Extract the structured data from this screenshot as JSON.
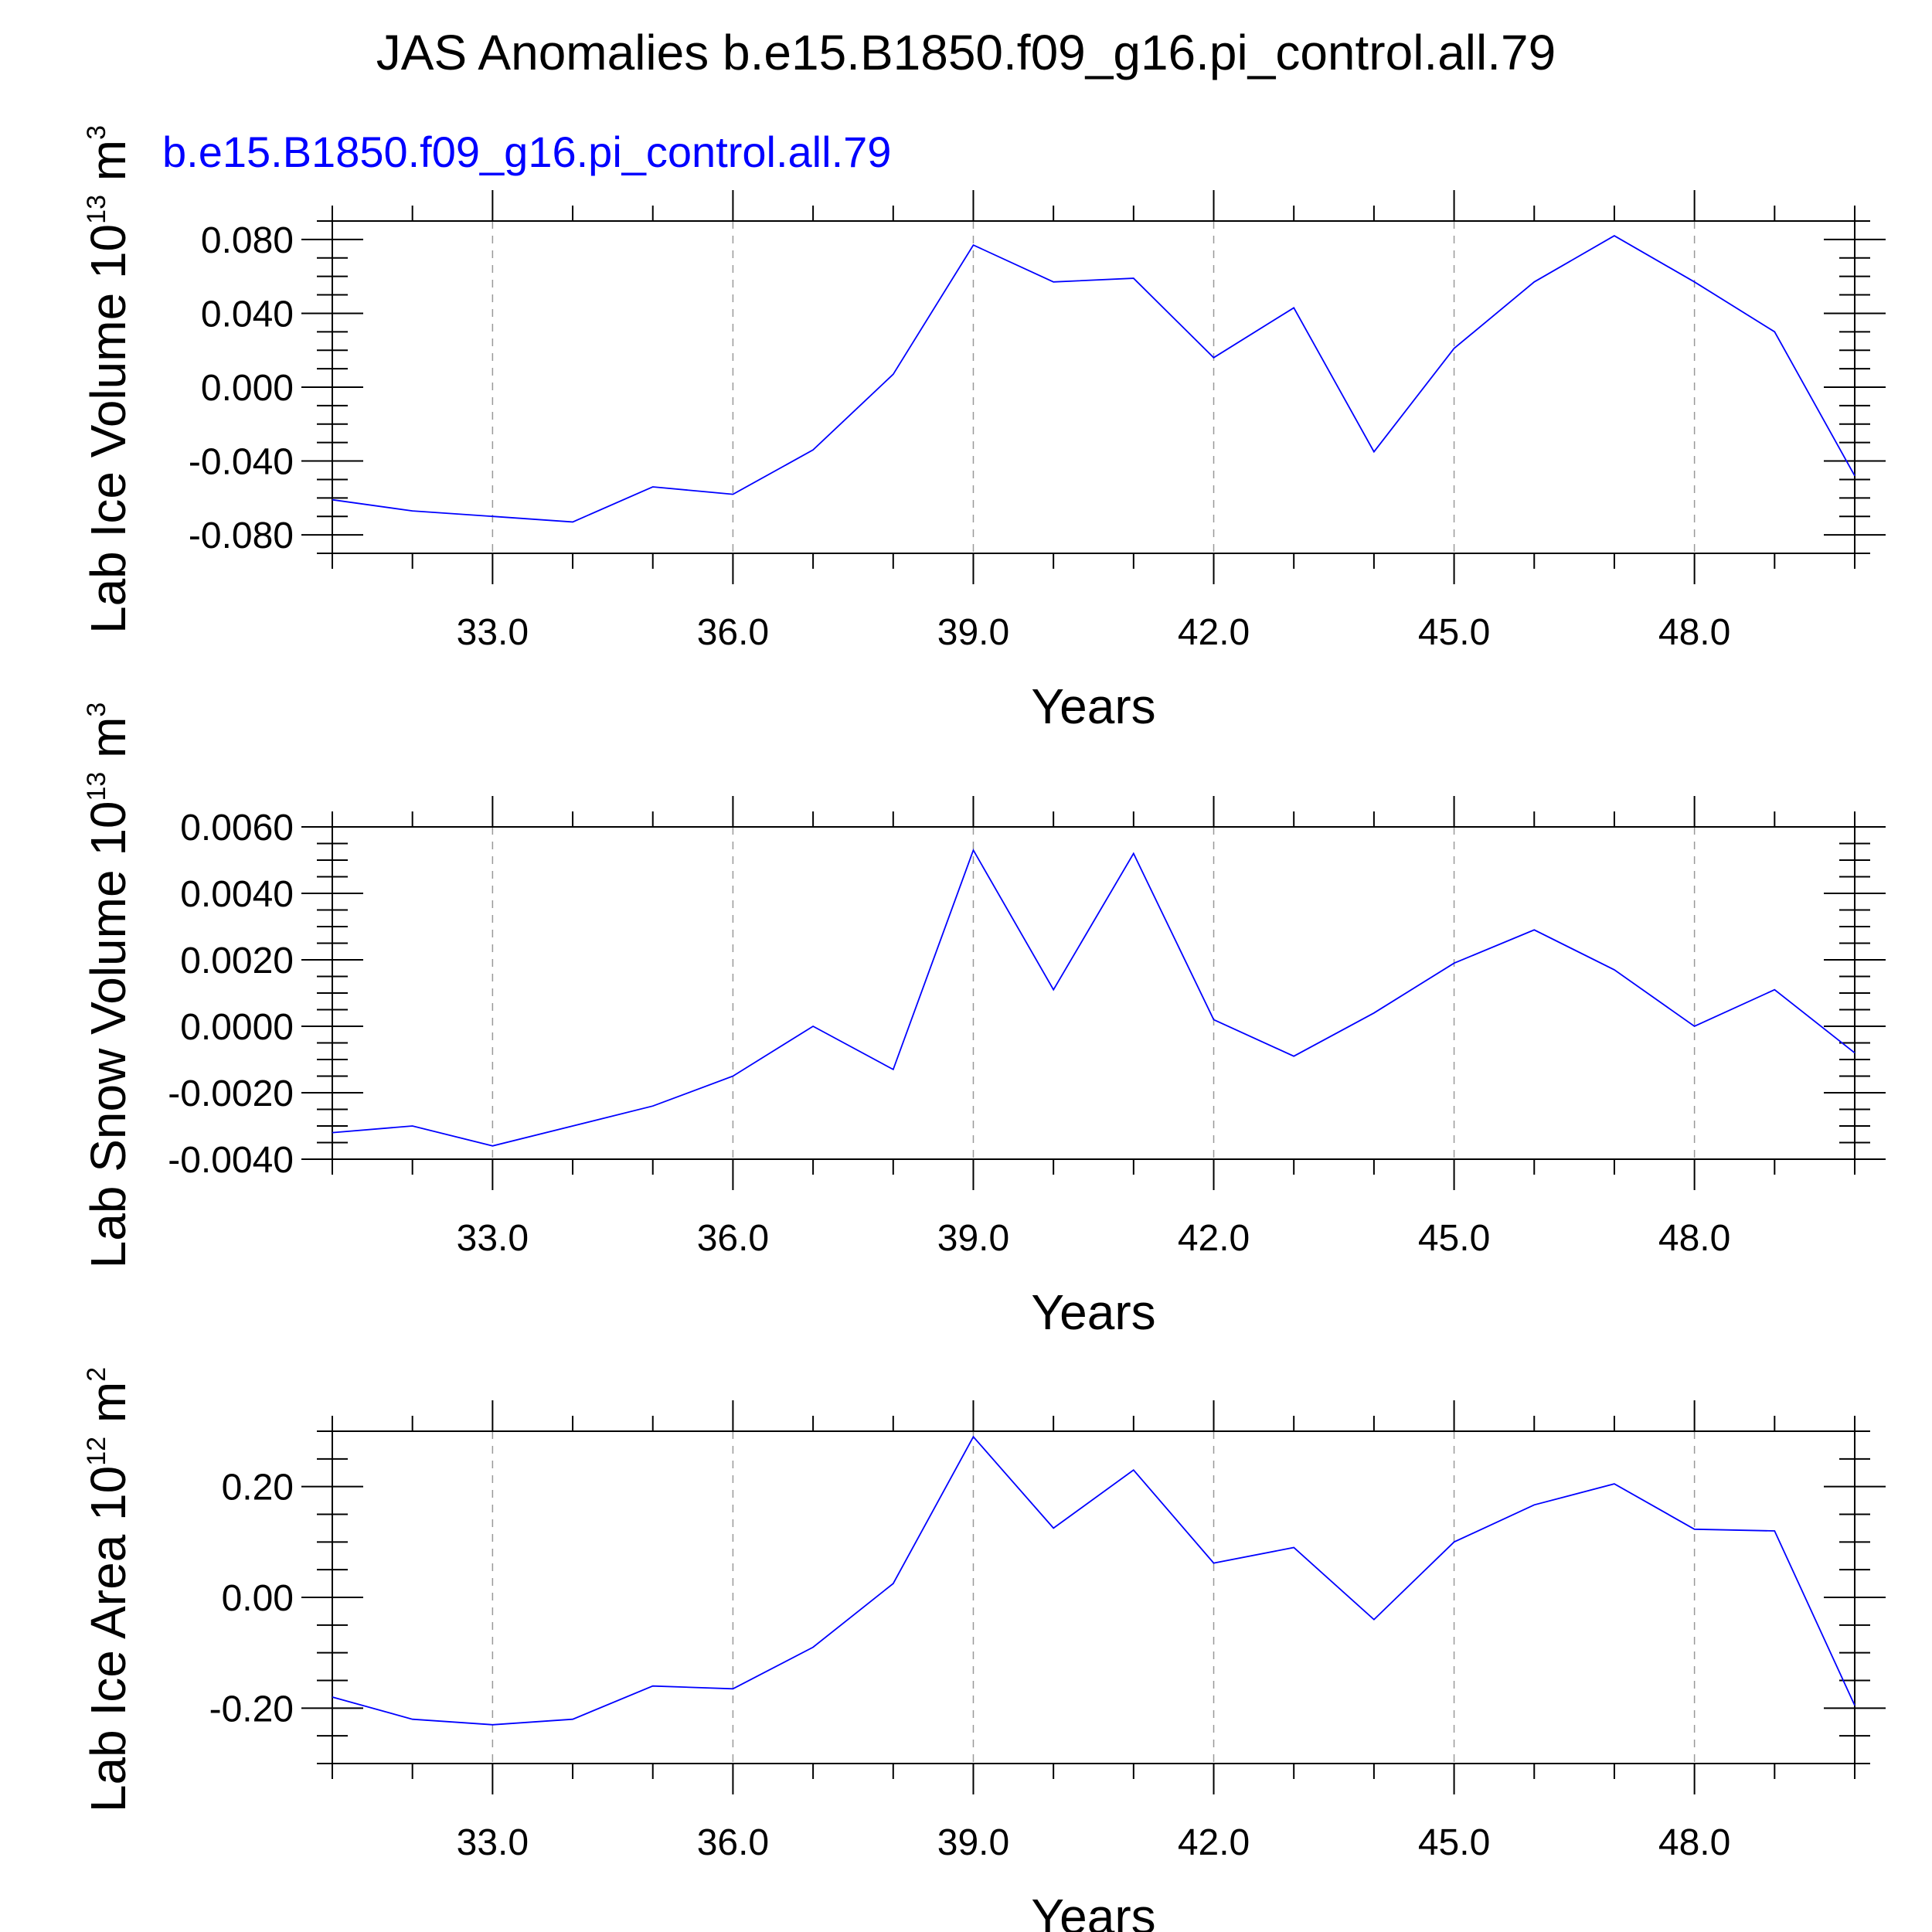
{
  "title": "JAS Anomalies b.e15.B1850.f09_g16.pi_control.all.79",
  "colors": {
    "series": "#0000ff",
    "axes": "#000000",
    "grid": "#999999",
    "background": "#ffffff"
  },
  "chart_data": [
    {
      "type": "line",
      "subtitle": "b.e15.B1850.f09_g16.pi_control.all.79",
      "ylabel": {
        "text": "Lab Ice Volume 10",
        "exponent": "13",
        "unit": "m",
        "unit_exponent": "3"
      },
      "xlabel": "Years",
      "xlim": [
        31,
        50
      ],
      "ylim": [
        -0.09,
        0.09
      ],
      "xticks": [
        33,
        36,
        39,
        42,
        45,
        48
      ],
      "xtick_labels": [
        "33.0",
        "36.0",
        "39.0",
        "42.0",
        "45.0",
        "48.0"
      ],
      "yticks": [
        -0.08,
        -0.04,
        0.0,
        0.04,
        0.08
      ],
      "ytick_labels": [
        "-0.080",
        "-0.040",
        "0.000",
        "0.040",
        "0.080"
      ],
      "grid": "vertical dashed at major x ticks",
      "x": [
        31,
        32,
        33,
        34,
        35,
        36,
        37,
        38,
        39,
        40,
        41,
        42,
        43,
        44,
        45,
        46,
        47,
        48,
        49,
        50
      ],
      "values": [
        -0.061,
        -0.067,
        -0.07,
        -0.073,
        -0.054,
        -0.058,
        -0.034,
        0.007,
        0.077,
        0.057,
        0.059,
        0.016,
        0.043,
        -0.035,
        0.021,
        0.057,
        0.082,
        0.057,
        0.03,
        -0.048
      ]
    },
    {
      "type": "line",
      "ylabel": {
        "text": "Lab Snow Volume 10",
        "exponent": "13",
        "unit": "m",
        "unit_exponent": "3"
      },
      "xlabel": "Years",
      "xlim": [
        31,
        50
      ],
      "ylim": [
        -0.004,
        0.006
      ],
      "xticks": [
        33,
        36,
        39,
        42,
        45,
        48
      ],
      "xtick_labels": [
        "33.0",
        "36.0",
        "39.0",
        "42.0",
        "45.0",
        "48.0"
      ],
      "yticks": [
        -0.004,
        -0.002,
        0.0,
        0.002,
        0.004,
        0.006
      ],
      "ytick_labels": [
        "-0.0040",
        "-0.0020",
        "0.0000",
        "0.0020",
        "0.0040",
        "0.0060"
      ],
      "grid": "vertical dashed at major x ticks",
      "x": [
        31,
        32,
        33,
        34,
        35,
        36,
        37,
        38,
        39,
        40,
        41,
        42,
        43,
        44,
        45,
        46,
        47,
        48,
        49,
        50
      ],
      "values": [
        -0.0032,
        -0.003,
        -0.0036,
        -0.003,
        -0.0024,
        -0.0015,
        0.0,
        -0.0013,
        0.0053,
        0.0011,
        0.0052,
        0.0002,
        -0.0009,
        0.0004,
        0.0019,
        0.0029,
        0.0017,
        -0.0,
        0.0011,
        -0.0008
      ]
    },
    {
      "type": "line",
      "ylabel": {
        "text": "Lab Ice Area 10",
        "exponent": "12",
        "unit": "m",
        "unit_exponent": "2"
      },
      "xlabel": "Years",
      "xlim": [
        31,
        50
      ],
      "ylim": [
        -0.3,
        0.3
      ],
      "xticks": [
        33,
        36,
        39,
        42,
        45,
        48
      ],
      "xtick_labels": [
        "33.0",
        "36.0",
        "39.0",
        "42.0",
        "45.0",
        "48.0"
      ],
      "yticks": [
        -0.2,
        0.0,
        0.2
      ],
      "ytick_labels": [
        "-0.20",
        "0.00",
        "0.20"
      ],
      "grid": "vertical dashed at major x ticks",
      "x": [
        31,
        32,
        33,
        34,
        35,
        36,
        37,
        38,
        39,
        40,
        41,
        42,
        43,
        44,
        45,
        46,
        47,
        48,
        49,
        50
      ],
      "values": [
        -0.18,
        -0.22,
        -0.23,
        -0.22,
        -0.16,
        -0.165,
        -0.09,
        0.025,
        0.29,
        0.125,
        0.23,
        0.062,
        0.09,
        -0.04,
        0.1,
        0.167,
        0.205,
        0.123,
        0.12,
        -0.195
      ]
    }
  ]
}
